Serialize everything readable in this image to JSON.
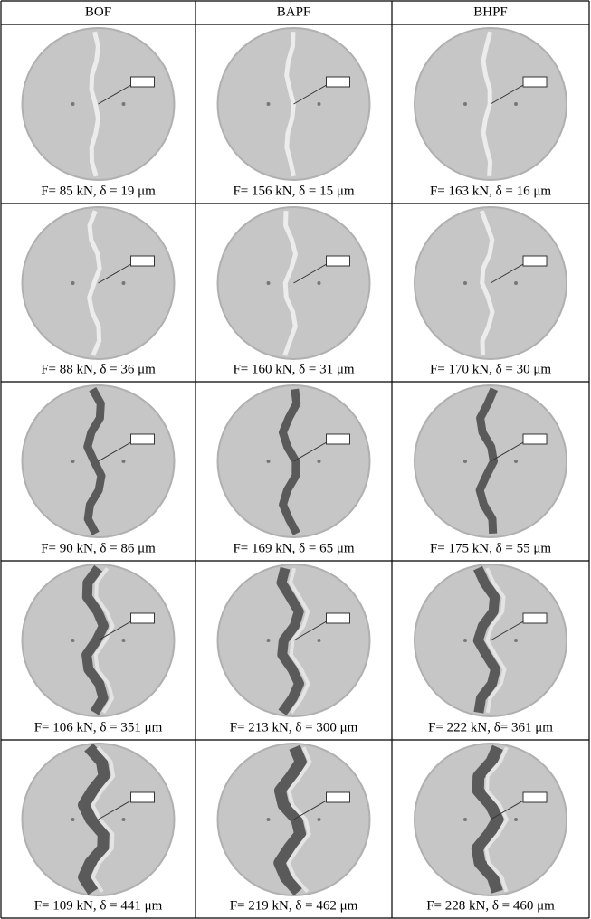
{
  "table": {
    "header": [
      "BOF",
      "BAPF",
      "BHPF"
    ],
    "rows": [
      [
        "F= 85 kN, δ = 19 μm",
        "F= 156 kN, δ = 15 μm",
        "F= 163 kN, δ = 16 μm"
      ],
      [
        "F= 88 kN, δ = 36 μm",
        "F= 160 kN, δ = 31 μm",
        "F= 170 kN, δ = 30 μm"
      ],
      [
        "F= 90 kN, δ = 86 μm",
        "F= 169 kN, δ = 65 μm",
        "F= 175 kN, δ = 55 μm"
      ],
      [
        "F= 106 kN, δ = 351 μm",
        "F= 213 kN, δ = 300 μm",
        "F= 222 kN, δ= 361 μm"
      ],
      [
        "F= 109 kN, δ = 441 μm",
        "F= 219 kN, δ = 462 μm",
        "F= 228 kN, δ = 460 μm"
      ]
    ]
  }
}
